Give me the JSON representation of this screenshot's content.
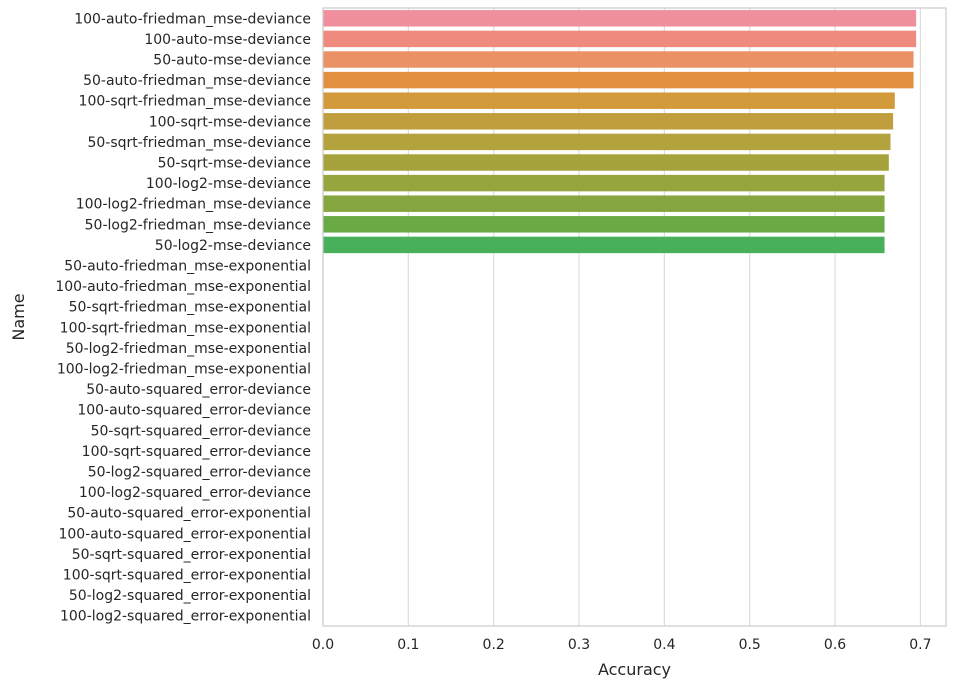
{
  "chart_data": {
    "type": "bar",
    "orientation": "horizontal",
    "title": "",
    "xlabel": "Accuracy",
    "ylabel": "Name",
    "xlim": [
      0,
      0.73
    ],
    "xticks": [
      "0.0",
      "0.1",
      "0.2",
      "0.3",
      "0.4",
      "0.5",
      "0.6",
      "0.7"
    ],
    "grid": true,
    "categories": [
      "100-auto-friedman_mse-deviance",
      "100-auto-mse-deviance",
      "50-auto-mse-deviance",
      "50-auto-friedman_mse-deviance",
      "100-sqrt-friedman_mse-deviance",
      "100-sqrt-mse-deviance",
      "50-sqrt-friedman_mse-deviance",
      "50-sqrt-mse-deviance",
      "100-log2-mse-deviance",
      "100-log2-friedman_mse-deviance",
      "50-log2-friedman_mse-deviance",
      "50-log2-mse-deviance",
      "50-auto-friedman_mse-exponential",
      "100-auto-friedman_mse-exponential",
      "50-sqrt-friedman_mse-exponential",
      "100-sqrt-friedman_mse-exponential",
      "50-log2-friedman_mse-exponential",
      "100-log2-friedman_mse-exponential",
      "50-auto-squared_error-deviance",
      "100-auto-squared_error-deviance",
      "50-sqrt-squared_error-deviance",
      "100-sqrt-squared_error-deviance",
      "50-log2-squared_error-deviance",
      "100-log2-squared_error-deviance",
      "50-auto-squared_error-exponential",
      "100-auto-squared_error-exponential",
      "50-sqrt-squared_error-exponential",
      "100-sqrt-squared_error-exponential",
      "50-log2-squared_error-exponential",
      "100-log2-squared_error-exponential"
    ],
    "values": [
      0.695,
      0.695,
      0.692,
      0.692,
      0.67,
      0.668,
      0.665,
      0.663,
      0.658,
      0.658,
      0.658,
      0.658,
      0,
      0,
      0,
      0,
      0,
      0,
      0,
      0,
      0,
      0,
      0,
      0,
      0,
      0,
      0,
      0,
      0,
      0
    ],
    "colors": [
      "#f08f9d",
      "#ee8b7e",
      "#ea9266",
      "#e28f3f",
      "#d39a3c",
      "#c19e3d",
      "#b3a23d",
      "#a7a33c",
      "#98a43d",
      "#85a63f",
      "#6aaa44",
      "#48b05a",
      "#3db37c",
      "#3cb293",
      "#3db2a3",
      "#3eb1b1",
      "#3fb0c0",
      "#42aed0",
      "#49aadf",
      "#58a4ec",
      "#7e9cf0",
      "#9a95f3",
      "#b58cf3",
      "#cd84f0",
      "#e07ae8",
      "#ea78d8",
      "#ef7bc6",
      "#f180b4",
      "#f384a4",
      "#f4889a"
    ]
  }
}
